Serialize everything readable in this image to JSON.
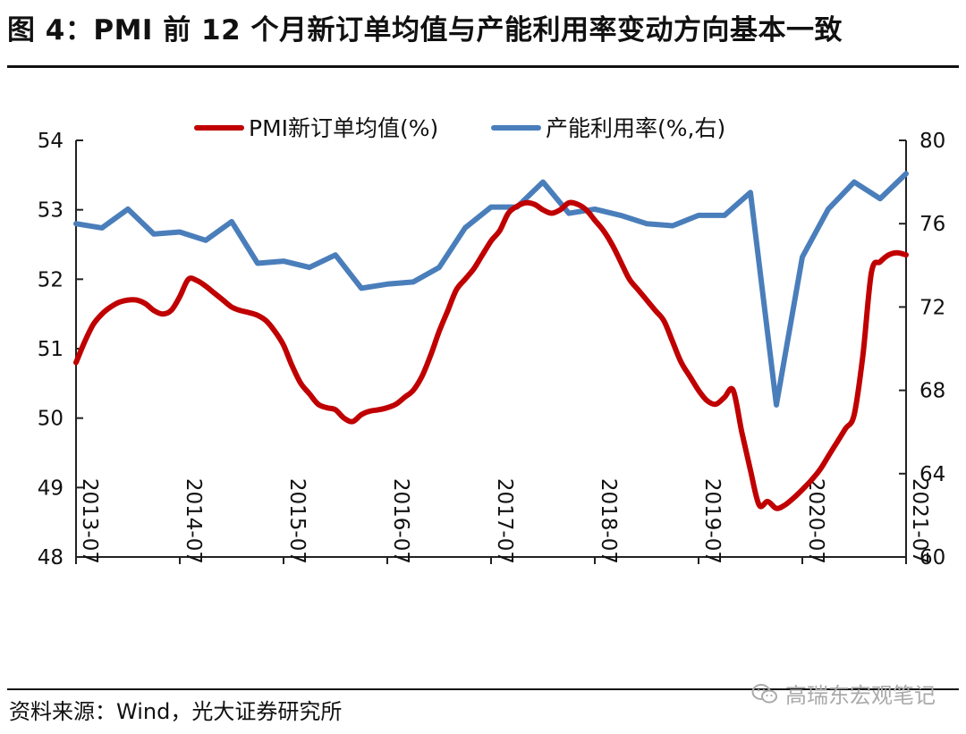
{
  "header": {
    "title": "图 4：PMI 前 12 个月新订单均值与产能利用率变动方向基本一致"
  },
  "footer": {
    "source": "资料来源：Wind，光大证券研究所",
    "watermark": "高瑞东宏观笔记",
    "watermark_icon": "wechat-icon"
  },
  "chart_data": {
    "type": "line",
    "x_tick_labels": [
      "2013-07",
      "2014-07",
      "2015-07",
      "2016-07",
      "2017-07",
      "2018-07",
      "2019-07",
      "2020-07",
      "2021-07"
    ],
    "x_range": [
      "2013-07",
      "2021-07"
    ],
    "ylim_left": [
      48,
      54
    ],
    "yticks_left": [
      "48",
      "49",
      "50",
      "51",
      "52",
      "53",
      "54"
    ],
    "ylim_right": [
      60,
      80
    ],
    "yticks_right": [
      "60",
      "64",
      "68",
      "72",
      "76",
      "80"
    ],
    "grid": false,
    "legend_position": "top",
    "series": [
      {
        "name": "PMI新订单均值(%)",
        "axis": "left",
        "color": "#c00000",
        "points": [
          [
            "2013-07",
            50.8
          ],
          [
            "2013-08",
            51.1
          ],
          [
            "2013-09",
            51.35
          ],
          [
            "2013-10",
            51.5
          ],
          [
            "2013-11",
            51.6
          ],
          [
            "2013-12",
            51.67
          ],
          [
            "2014-01",
            51.7
          ],
          [
            "2014-02",
            51.7
          ],
          [
            "2014-03",
            51.65
          ],
          [
            "2014-04",
            51.55
          ],
          [
            "2014-05",
            51.5
          ],
          [
            "2014-06",
            51.55
          ],
          [
            "2014-07",
            51.75
          ],
          [
            "2014-08",
            52.0
          ],
          [
            "2014-09",
            51.98
          ],
          [
            "2014-10",
            51.9
          ],
          [
            "2014-11",
            51.8
          ],
          [
            "2014-12",
            51.7
          ],
          [
            "2015-01",
            51.6
          ],
          [
            "2015-02",
            51.55
          ],
          [
            "2015-03",
            51.52
          ],
          [
            "2015-04",
            51.48
          ],
          [
            "2015-05",
            51.4
          ],
          [
            "2015-06",
            51.25
          ],
          [
            "2015-07",
            51.05
          ],
          [
            "2015-08",
            50.75
          ],
          [
            "2015-09",
            50.5
          ],
          [
            "2015-10",
            50.35
          ],
          [
            "2015-11",
            50.2
          ],
          [
            "2015-12",
            50.15
          ],
          [
            "2016-01",
            50.12
          ],
          [
            "2016-02",
            50.0
          ],
          [
            "2016-03",
            49.95
          ],
          [
            "2016-04",
            50.05
          ],
          [
            "2016-05",
            50.1
          ],
          [
            "2016-06",
            50.12
          ],
          [
            "2016-07",
            50.15
          ],
          [
            "2016-08",
            50.2
          ],
          [
            "2016-09",
            50.3
          ],
          [
            "2016-10",
            50.4
          ],
          [
            "2016-11",
            50.6
          ],
          [
            "2016-12",
            50.9
          ],
          [
            "2017-01",
            51.25
          ],
          [
            "2017-02",
            51.55
          ],
          [
            "2017-03",
            51.85
          ],
          [
            "2017-04",
            52.0
          ],
          [
            "2017-05",
            52.15
          ],
          [
            "2017-06",
            52.35
          ],
          [
            "2017-07",
            52.55
          ],
          [
            "2017-08",
            52.7
          ],
          [
            "2017-09",
            52.95
          ],
          [
            "2017-10",
            53.05
          ],
          [
            "2017-11",
            53.1
          ],
          [
            "2017-12",
            53.08
          ],
          [
            "2018-01",
            53.0
          ],
          [
            "2018-02",
            52.95
          ],
          [
            "2018-03",
            53.0
          ],
          [
            "2018-04",
            53.1
          ],
          [
            "2018-05",
            53.08
          ],
          [
            "2018-06",
            53.0
          ],
          [
            "2018-07",
            52.85
          ],
          [
            "2018-08",
            52.7
          ],
          [
            "2018-09",
            52.5
          ],
          [
            "2018-10",
            52.25
          ],
          [
            "2018-11",
            52.0
          ],
          [
            "2018-12",
            51.85
          ],
          [
            "2019-01",
            51.7
          ],
          [
            "2019-02",
            51.55
          ],
          [
            "2019-03",
            51.4
          ],
          [
            "2019-04",
            51.1
          ],
          [
            "2019-05",
            50.8
          ],
          [
            "2019-06",
            50.6
          ],
          [
            "2019-07",
            50.4
          ],
          [
            "2019-08",
            50.25
          ],
          [
            "2019-09",
            50.2
          ],
          [
            "2019-10",
            50.3
          ],
          [
            "2019-11",
            50.4
          ],
          [
            "2019-12",
            49.8
          ],
          [
            "2020-01",
            49.25
          ],
          [
            "2020-02",
            48.75
          ],
          [
            "2020-03",
            48.8
          ],
          [
            "2020-04",
            48.7
          ],
          [
            "2020-05",
            48.75
          ],
          [
            "2020-06",
            48.85
          ],
          [
            "2020-07",
            48.97
          ],
          [
            "2020-08",
            49.1
          ],
          [
            "2020-09",
            49.25
          ],
          [
            "2020-10",
            49.45
          ],
          [
            "2020-11",
            49.65
          ],
          [
            "2020-12",
            49.85
          ],
          [
            "2021-01",
            50.05
          ],
          [
            "2021-02",
            50.9
          ],
          [
            "2021-03",
            52.1
          ],
          [
            "2021-04",
            52.25
          ],
          [
            "2021-05",
            52.35
          ],
          [
            "2021-06",
            52.38
          ],
          [
            "2021-07",
            52.35
          ]
        ]
      },
      {
        "name": "产能利用率(%,右)",
        "axis": "right",
        "color": "#4a7ebb",
        "points": [
          [
            "2013-07",
            76.0
          ],
          [
            "2013-10",
            75.8
          ],
          [
            "2014-01",
            76.7
          ],
          [
            "2014-04",
            75.5
          ],
          [
            "2014-07",
            75.6
          ],
          [
            "2014-10",
            75.2
          ],
          [
            "2015-01",
            76.1
          ],
          [
            "2015-04",
            74.1
          ],
          [
            "2015-07",
            74.2
          ],
          [
            "2015-10",
            73.9
          ],
          [
            "2016-01",
            74.5
          ],
          [
            "2016-04",
            72.9
          ],
          [
            "2016-07",
            73.1
          ],
          [
            "2016-10",
            73.2
          ],
          [
            "2017-01",
            73.9
          ],
          [
            "2017-04",
            75.8
          ],
          [
            "2017-07",
            76.8
          ],
          [
            "2017-10",
            76.8
          ],
          [
            "2018-01",
            78.0
          ],
          [
            "2018-04",
            76.5
          ],
          [
            "2018-07",
            76.7
          ],
          [
            "2018-10",
            76.4
          ],
          [
            "2019-01",
            76.0
          ],
          [
            "2019-04",
            75.9
          ],
          [
            "2019-07",
            76.4
          ],
          [
            "2019-10",
            76.4
          ],
          [
            "2020-01",
            77.5
          ],
          [
            "2020-04",
            67.3
          ],
          [
            "2020-07",
            74.4
          ],
          [
            "2020-10",
            76.7
          ],
          [
            "2021-01",
            78.0
          ],
          [
            "2021-04",
            77.2
          ],
          [
            "2021-07",
            78.4
          ]
        ]
      }
    ]
  }
}
